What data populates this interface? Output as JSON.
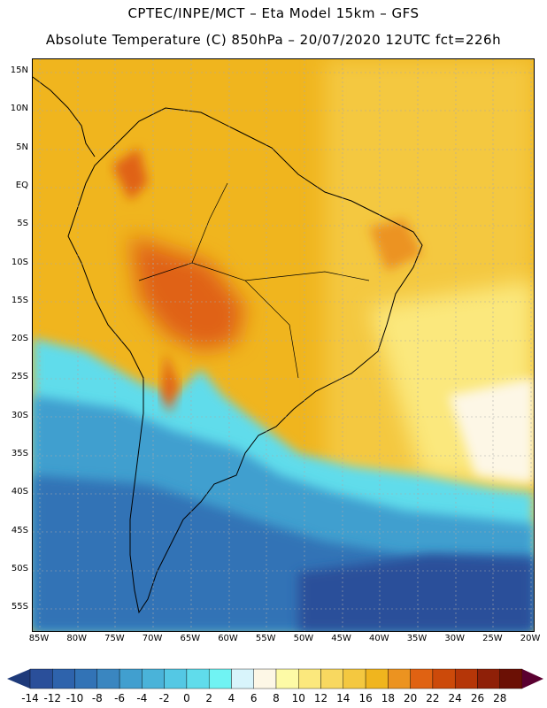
{
  "header": {
    "title_line1": "CPTEC/INPE/MCT –  Eta Model 15km – GFS",
    "title_line2": "Absolute Temperature (C) 850hPa – 20/07/2020 12UTC fct=226h"
  },
  "map": {
    "lat_labels": [
      "15N",
      "10N",
      "5N",
      "EQ",
      "5S",
      "10S",
      "15S",
      "20S",
      "25S",
      "30S",
      "35S",
      "40S",
      "45S",
      "50S",
      "55S"
    ],
    "lon_labels": [
      "85W",
      "80W",
      "75W",
      "70W",
      "65W",
      "60W",
      "55W",
      "50W",
      "45W",
      "40W",
      "35W",
      "30W",
      "25W",
      "20W"
    ]
  },
  "colorbar": {
    "labels": [
      "-14",
      "-12",
      "-10",
      "-8",
      "-6",
      "-4",
      "-2",
      "0",
      "2",
      "4",
      "6",
      "8",
      "10",
      "12",
      "14",
      "16",
      "18",
      "20",
      "22",
      "24",
      "26",
      "28"
    ],
    "colors": [
      "#2a4f9a",
      "#2e63ac",
      "#3273b6",
      "#3a86c0",
      "#419fcf",
      "#4ab3d9",
      "#54c8e4",
      "#60dceb",
      "#70f3f3",
      "#d8f4fb",
      "#fdf7e6",
      "#fdfaa6",
      "#fbe87d",
      "#f8d860",
      "#f4c840",
      "#f0b51e",
      "#ec9320",
      "#e06212",
      "#cc4a0a",
      "#b53608",
      "#8f2008",
      "#6b1005"
    ],
    "under_color": "#1e3a7a",
    "over_color": "#5a0030"
  }
}
